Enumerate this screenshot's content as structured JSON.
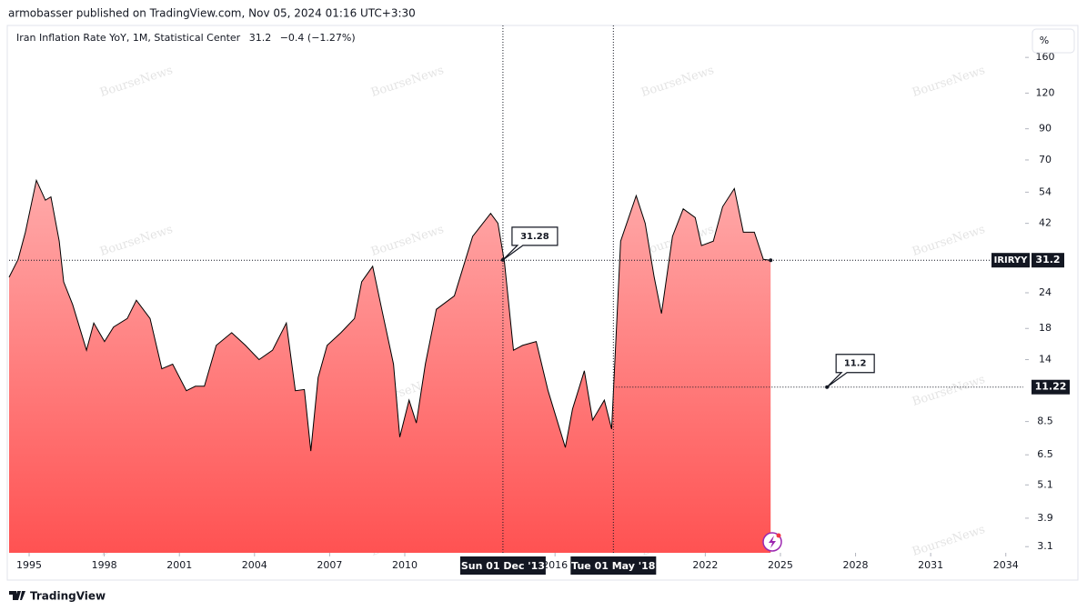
{
  "header": {
    "published": "armobasser published on TradingView.com, Nov 05, 2024 01:16 UTC+3:30"
  },
  "watermark": "BourseNews",
  "footer": {
    "brand": "TradingView"
  },
  "chart_data": {
    "type": "area",
    "title": "Iran Inflation Rate YoY, 1M, Statistical Center",
    "change_text": "−0.4 (−1.27%)",
    "ticker": "IRIRYY",
    "unit_button": "%",
    "color": "#000000",
    "fill_top": "#ffaaaa",
    "fill_bottom": "#ff5252",
    "log_scale": true,
    "x": [
      1994.2,
      1994.56,
      1994.85,
      1995.29,
      1995.65,
      1995.87,
      1996.2,
      1996.38,
      1996.74,
      1997.29,
      1997.58,
      1998.01,
      1998.37,
      1998.92,
      1999.28,
      1999.83,
      2000.3,
      2000.73,
      2001.28,
      2001.64,
      2002.0,
      2002.47,
      2003.09,
      2003.64,
      2004.18,
      2004.72,
      2005.27,
      2005.63,
      2005.99,
      2006.25,
      2006.54,
      2006.9,
      2007.45,
      2007.99,
      2008.28,
      2008.72,
      2009.08,
      2009.55,
      2009.8,
      2010.17,
      2010.46,
      2010.82,
      2011.26,
      2011.98,
      2012.71,
      2013.43,
      2013.72,
      2013.98,
      2014.34,
      2014.7,
      2015.25,
      2015.72,
      2016.41,
      2016.7,
      2017.17,
      2017.5,
      2017.97,
      2018.26,
      2018.62,
      2019.24,
      2019.6,
      2019.96,
      2020.25,
      2020.69,
      2021.12,
      2021.6,
      2021.85,
      2022.32,
      2022.69,
      2023.16,
      2023.52,
      2023.96,
      2024.32,
      2024.61
    ],
    "values": [
      27.2,
      31.4,
      39.1,
      59.4,
      50.6,
      52,
      36.4,
      26.2,
      21.8,
      15.1,
      18.8,
      16.2,
      18.2,
      19.5,
      22.6,
      19.5,
      13.0,
      13.5,
      10.9,
      11.3,
      11.3,
      15.7,
      17.4,
      15.7,
      14.0,
      15.1,
      18.8,
      10.9,
      11.0,
      6.7,
      12.1,
      15.7,
      17.4,
      19.5,
      26.2,
      29.7,
      21.0,
      13.5,
      7.5,
      10.1,
      8.4,
      13.5,
      21.0,
      23.4,
      37.8,
      45.5,
      42,
      30.7,
      15.1,
      15.7,
      16.2,
      10.9,
      6.9,
      9.4,
      12.8,
      8.6,
      10.1,
      8.0,
      36.4,
      52.5,
      42,
      27.2,
      20.3,
      37.8,
      47.2,
      44,
      35.1,
      36.4,
      48,
      55.6,
      39.1,
      39.1,
      31.4,
      31.2
    ],
    "xlim": [
      1994.2,
      2034.7
    ],
    "xticks": [
      1995,
      1998,
      2001,
      2004,
      2007,
      2010,
      2016,
      2022,
      2025,
      2028,
      2031,
      2034
    ],
    "ylim": [
      2.95,
      204
    ],
    "yticks": [
      3.1,
      3.9,
      5.1,
      6.5,
      8.5,
      14,
      18,
      24,
      42,
      54,
      70,
      90,
      120,
      160
    ],
    "crosshairs": [
      {
        "x": 2013.92,
        "label": "Sun 01 Dec '13",
        "value": 31.28
      },
      {
        "x": 2018.33,
        "label": "Tue 01 May '18",
        "value": 11.22,
        "callout": {
          "x": 2026.86,
          "value": 11.2
        }
      }
    ]
  }
}
